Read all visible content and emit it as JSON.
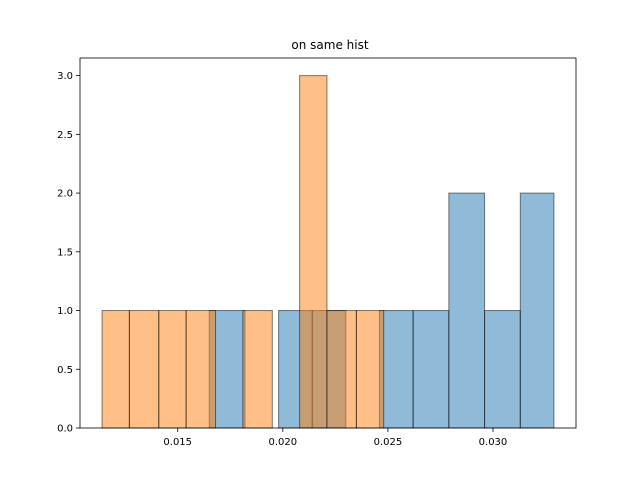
{
  "chart_data": {
    "type": "bar",
    "title": "on same hist",
    "xlabel": "",
    "ylabel": "",
    "xlim": [
      0.01035,
      0.03395
    ],
    "ylim": [
      0,
      3.15
    ],
    "xticks": [
      {
        "value": 0.015,
        "label": "0.015"
      },
      {
        "value": 0.02,
        "label": "0.020"
      },
      {
        "value": 0.025,
        "label": "0.025"
      },
      {
        "value": 0.03,
        "label": "0.030"
      }
    ],
    "yticks": [
      {
        "value": 0.0,
        "label": "0.0"
      },
      {
        "value": 0.5,
        "label": "0.5"
      },
      {
        "value": 1.0,
        "label": "1.0"
      },
      {
        "value": 1.5,
        "label": "1.5"
      },
      {
        "value": 2.0,
        "label": "2.0"
      },
      {
        "value": 2.5,
        "label": "2.5"
      },
      {
        "value": 3.0,
        "label": "3.0"
      }
    ],
    "series": [
      {
        "color": "#1f77b4",
        "alpha": 0.5,
        "bins": [
          {
            "x0": 0.0165,
            "x1": 0.0182,
            "count": 1
          },
          {
            "x0": 0.0198,
            "x1": 0.0214,
            "count": 1
          },
          {
            "x0": 0.0214,
            "x1": 0.023,
            "count": 1
          },
          {
            "x0": 0.0246,
            "x1": 0.0262,
            "count": 1
          },
          {
            "x0": 0.0262,
            "x1": 0.0279,
            "count": 1
          },
          {
            "x0": 0.0279,
            "x1": 0.0296,
            "count": 2
          },
          {
            "x0": 0.0296,
            "x1": 0.0313,
            "count": 1
          },
          {
            "x0": 0.0313,
            "x1": 0.0329,
            "count": 2
          }
        ]
      },
      {
        "color": "#ff7f0e",
        "alpha": 0.5,
        "bins": [
          {
            "x0": 0.0114,
            "x1": 0.0127,
            "count": 1
          },
          {
            "x0": 0.0127,
            "x1": 0.0141,
            "count": 1
          },
          {
            "x0": 0.0141,
            "x1": 0.0154,
            "count": 1
          },
          {
            "x0": 0.0154,
            "x1": 0.0168,
            "count": 1
          },
          {
            "x0": 0.0181,
            "x1": 0.0195,
            "count": 1
          },
          {
            "x0": 0.0208,
            "x1": 0.0221,
            "count": 3
          },
          {
            "x0": 0.0221,
            "x1": 0.0235,
            "count": 1
          },
          {
            "x0": 0.0235,
            "x1": 0.0248,
            "count": 1
          }
        ]
      }
    ]
  }
}
